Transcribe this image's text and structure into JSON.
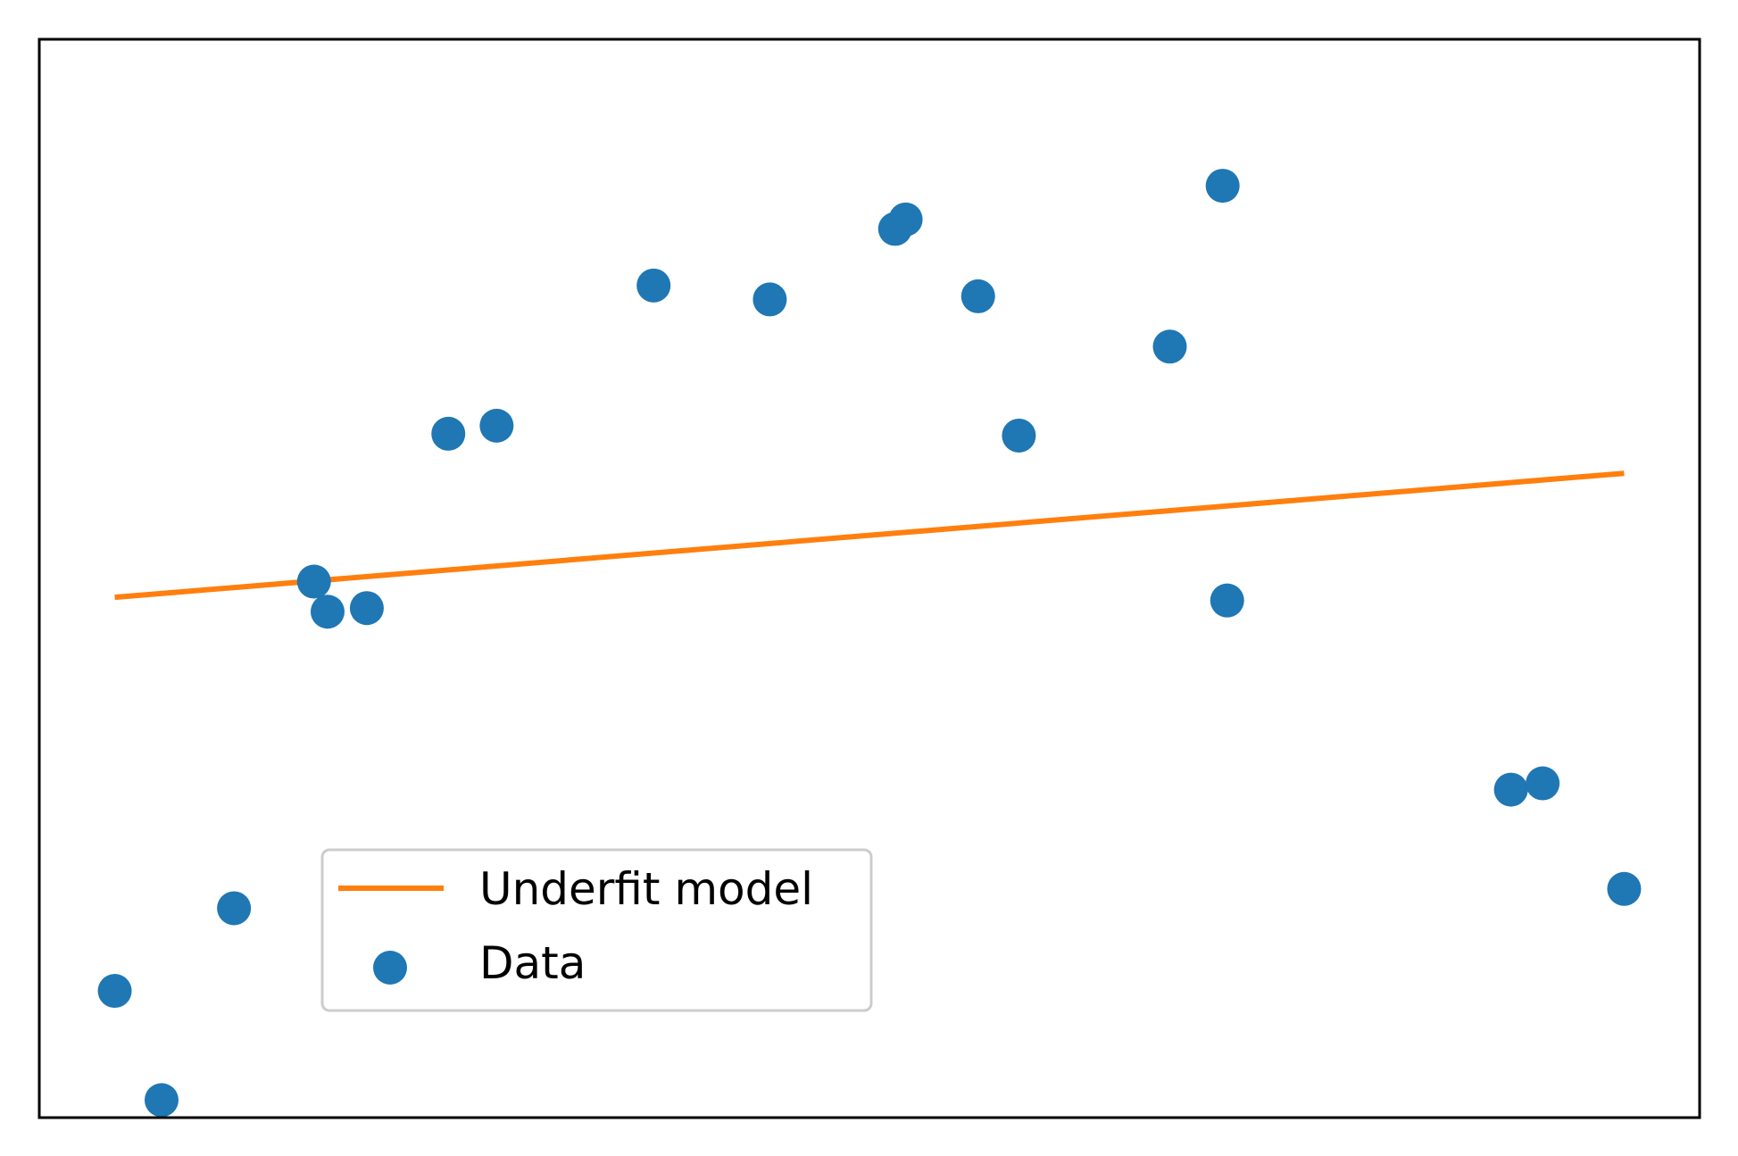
{
  "chart_data": {
    "type": "scatter",
    "title": "",
    "xlabel": "",
    "ylabel": "",
    "xlim": [
      -0.05,
      1.05
    ],
    "ylim": [
      -1.2,
      1.2
    ],
    "xticks_visible": false,
    "yticks_visible": false,
    "grid": false,
    "legend_position": "lower-left",
    "series": [
      {
        "name": "Data",
        "kind": "scatter",
        "color": "#1f77b4",
        "x": [
          0.0,
          0.031,
          0.079,
          0.132,
          0.141,
          0.167,
          0.221,
          0.253,
          0.357,
          0.434,
          0.517,
          0.524,
          0.572,
          0.599,
          0.699,
          0.734,
          0.737,
          0.925,
          0.946,
          1.0
        ],
        "y": [
          -0.918,
          -1.161,
          -0.734,
          -0.007,
          -0.074,
          -0.066,
          0.322,
          0.34,
          0.652,
          0.621,
          0.778,
          0.799,
          0.628,
          0.318,
          0.516,
          0.874,
          -0.049,
          -0.47,
          -0.456,
          -0.691
        ]
      },
      {
        "name": "Underfit model",
        "kind": "line",
        "color": "#ff7f0e",
        "x": [
          0.0,
          1.0
        ],
        "y": [
          -0.042,
          0.234
        ]
      }
    ]
  }
}
